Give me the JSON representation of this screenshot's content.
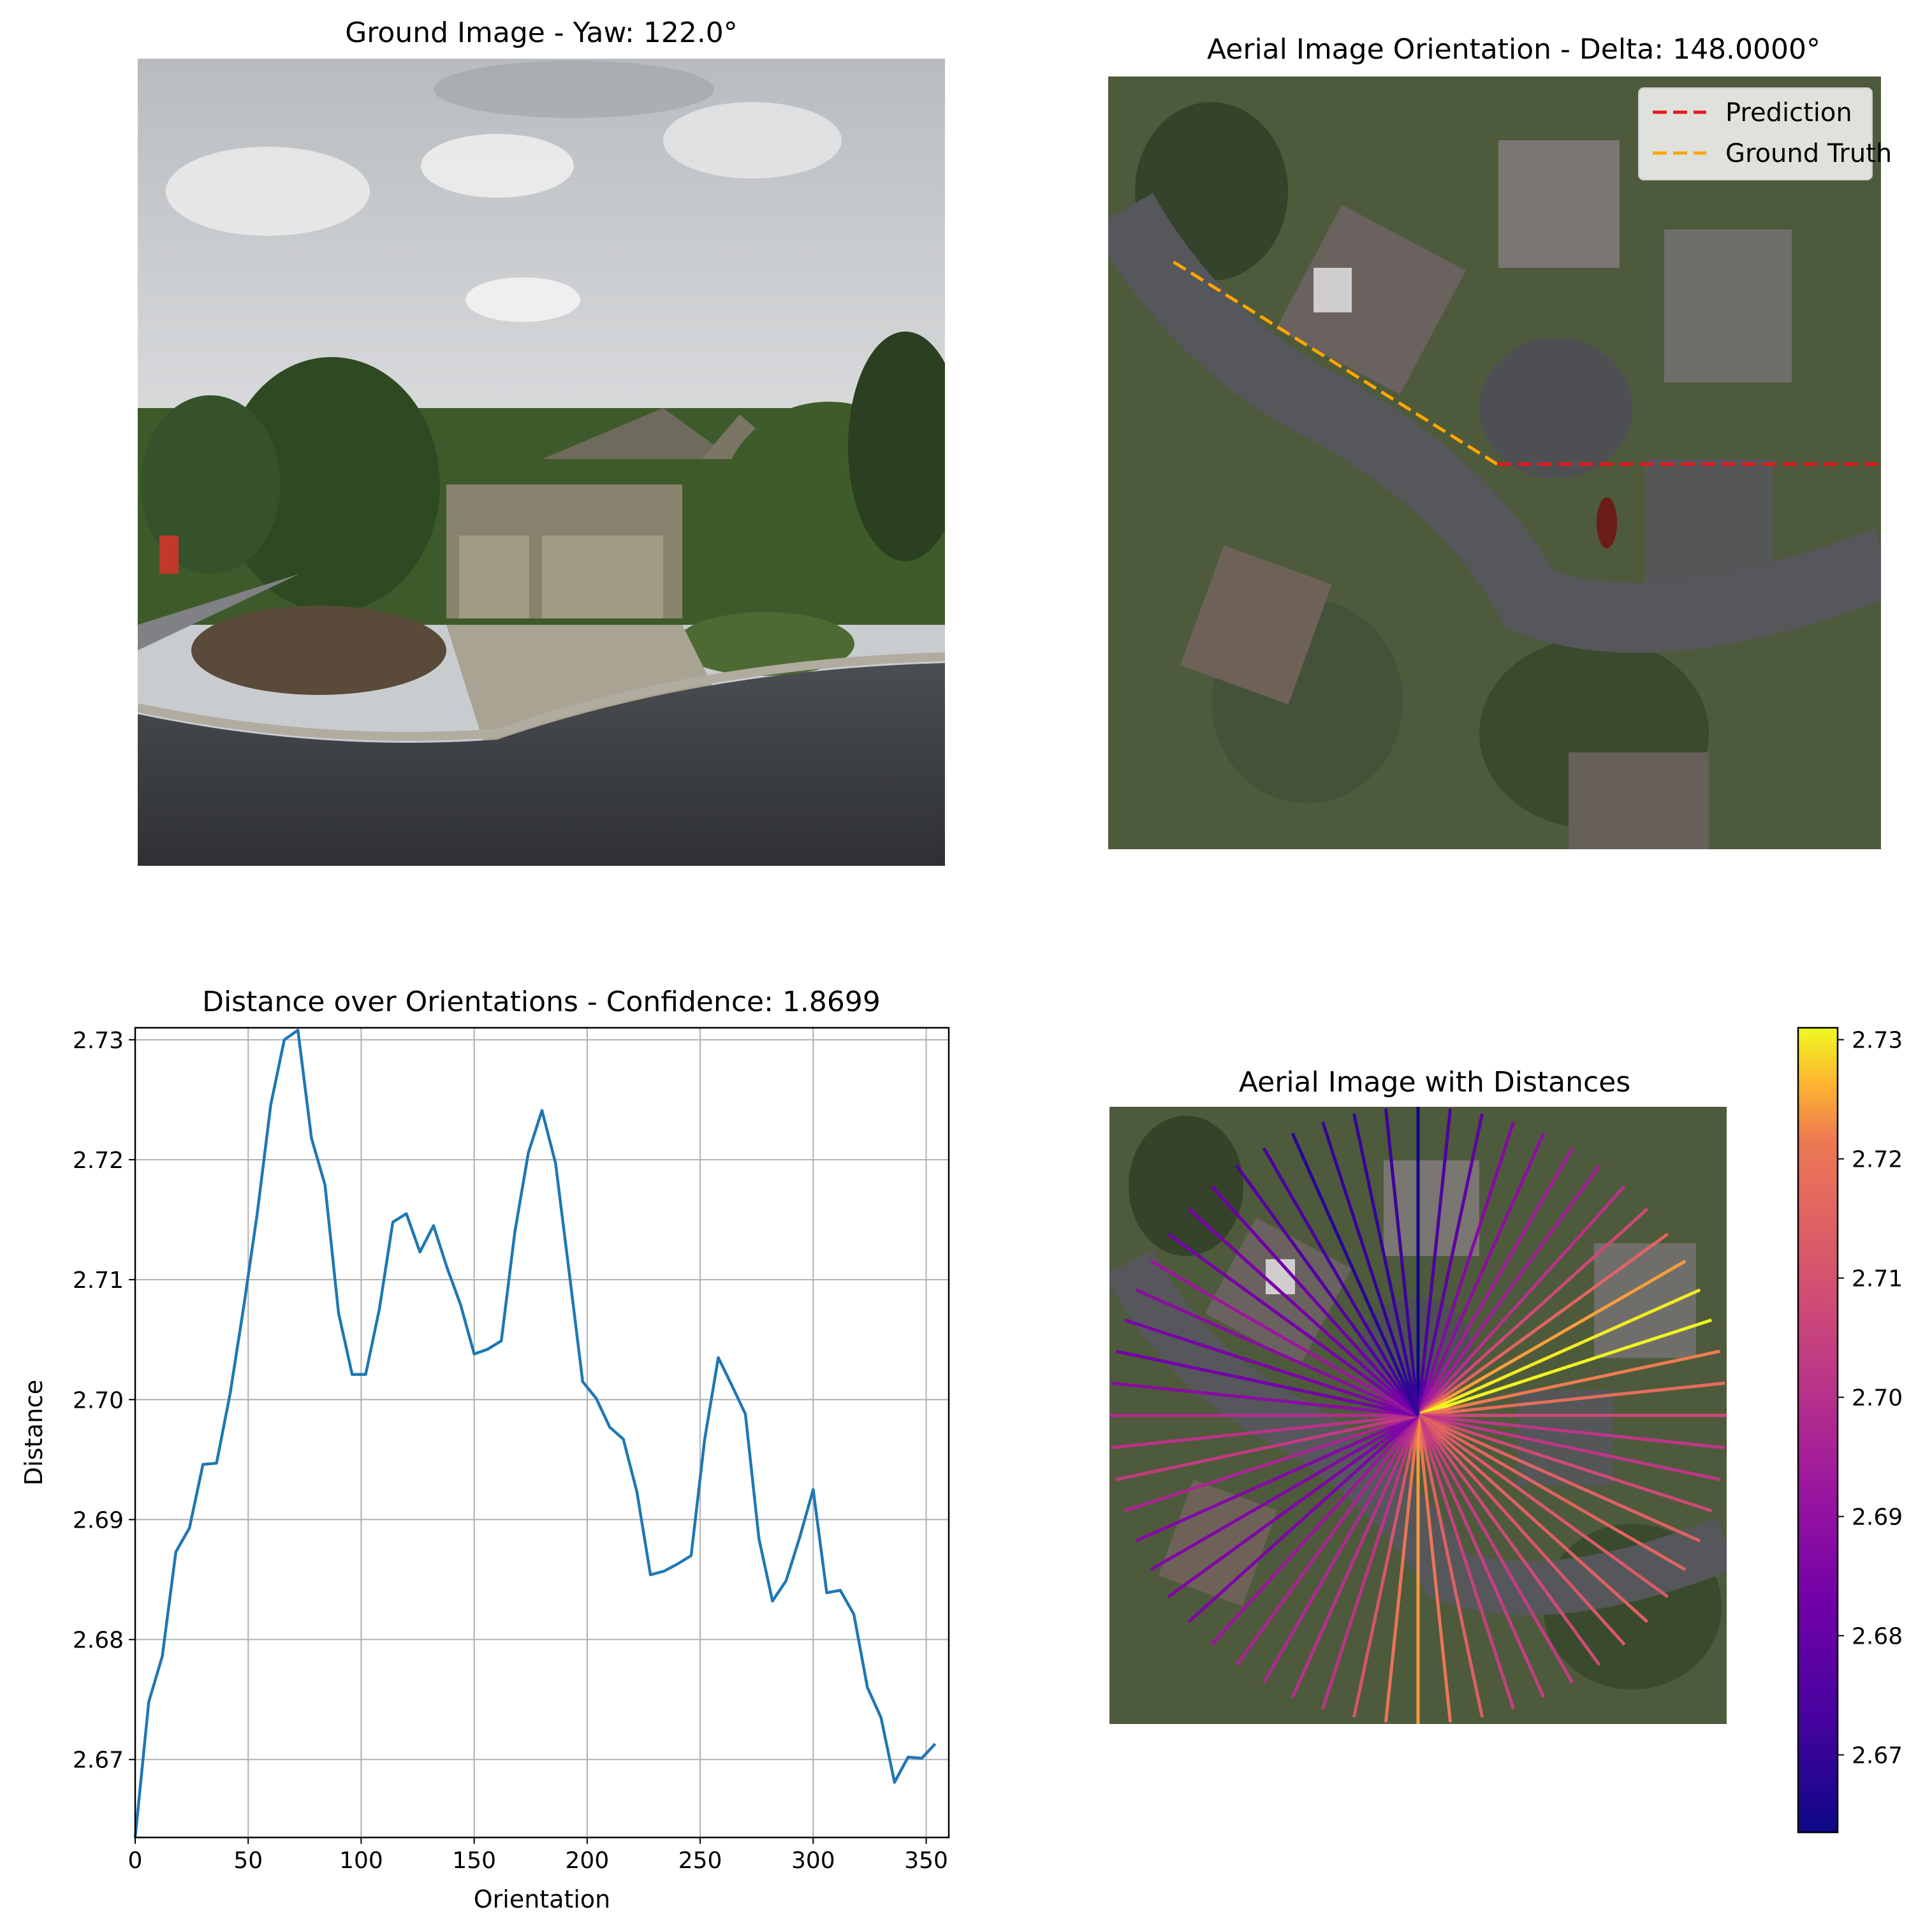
{
  "panels": {
    "ground": {
      "title": "Ground Image - Yaw: 122.0°"
    },
    "aerial": {
      "title": "Aerial Image Orientation - Delta: 148.0000°",
      "legend": [
        {
          "label": "Prediction",
          "color": "#e8161b"
        },
        {
          "label": "Ground Truth",
          "color": "#ffa500"
        }
      ],
      "prediction_angle_deg": 90,
      "ground_truth_angle_deg": 302
    },
    "distances": {
      "title": "Aerial Image with Distances"
    }
  },
  "colors": {
    "line": "#1f77b4",
    "grid": "#b0b0b0"
  },
  "colorbar": {
    "colormap": "plasma",
    "min": 2.6635,
    "max": 2.731,
    "ticks": [
      "2.67",
      "2.68",
      "2.69",
      "2.70",
      "2.71",
      "2.72",
      "2.73"
    ]
  },
  "chart_data": {
    "type": "line",
    "title": "Distance over Orientations - Confidence: 1.8699",
    "xlabel": "Orientation",
    "ylabel": "Distance",
    "xlim": [
      0,
      360
    ],
    "ylim": [
      2.6635,
      2.731
    ],
    "grid": true,
    "x_ticks": [
      "0",
      "50",
      "100",
      "150",
      "200",
      "250",
      "300",
      "350"
    ],
    "y_ticks": [
      "2.67",
      "2.68",
      "2.69",
      "2.70",
      "2.71",
      "2.72",
      "2.73"
    ],
    "x": [
      0,
      6,
      12,
      18,
      24,
      30,
      36,
      42,
      48,
      54,
      60,
      66,
      72,
      78,
      84,
      90,
      96,
      102,
      108,
      114,
      120,
      126,
      132,
      138,
      144,
      150,
      156,
      162,
      168,
      174,
      180,
      186,
      192,
      198,
      204,
      210,
      216,
      222,
      228,
      234,
      240,
      246,
      252,
      258,
      264,
      270,
      276,
      282,
      288,
      294,
      300,
      306,
      312,
      318,
      324,
      330,
      336,
      342,
      348,
      354
    ],
    "series": [
      {
        "values": [
          2.6635,
          2.6748,
          2.6786,
          2.6873,
          2.6893,
          2.6946,
          2.6947,
          2.7005,
          2.7077,
          2.7155,
          2.7246,
          2.73,
          2.7308,
          2.7218,
          2.7179,
          2.7072,
          2.7021,
          2.7021,
          2.7075,
          2.7148,
          2.7155,
          2.7123,
          2.7145,
          2.711,
          2.7079,
          2.7038,
          2.7042,
          2.7049,
          2.714,
          2.7206,
          2.7241,
          2.7197,
          2.7107,
          2.7015,
          2.7001,
          2.6977,
          2.6967,
          2.6923,
          2.6854,
          2.6857,
          2.6863,
          2.687,
          2.6967,
          2.7035,
          2.7012,
          2.6988,
          2.6884,
          2.6832,
          2.6849,
          2.6885,
          2.6925,
          2.6839,
          2.6841,
          2.6821,
          2.676,
          2.6735,
          2.6681,
          2.6702,
          2.6701,
          2.6713
        ]
      }
    ]
  }
}
